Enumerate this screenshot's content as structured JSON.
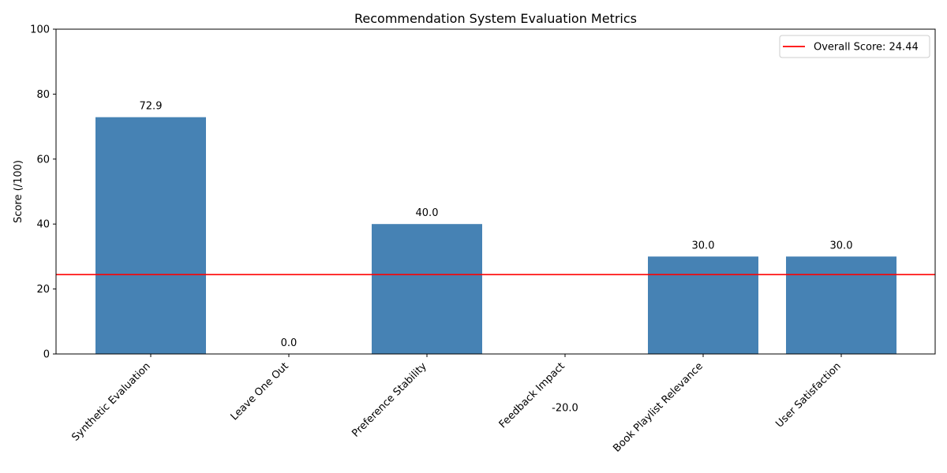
{
  "chart_data": {
    "type": "bar",
    "title": "Recommendation System Evaluation Metrics",
    "xlabel": "",
    "ylabel": "Score (/100)",
    "ylim": [
      0,
      100
    ],
    "yticks": [
      0,
      20,
      40,
      60,
      80,
      100
    ],
    "categories": [
      "Synthetic Evaluation",
      "Leave One Out",
      "Preference Stability",
      "Feedback Impact",
      "Book Playlist Relevance",
      "User Satisfaction"
    ],
    "values": [
      72.9,
      0.0,
      40.0,
      -20.0,
      30.0,
      30.0
    ],
    "data_labels": [
      "72.9",
      "0.0",
      "40.0",
      "-20.0",
      "30.0",
      "30.0"
    ],
    "bar_color": "#4682b4",
    "reference_line": {
      "value": 24.44,
      "label": "Overall Score: 24.44",
      "color": "#ff0000"
    },
    "legend_position": "top-right",
    "grid": false
  }
}
